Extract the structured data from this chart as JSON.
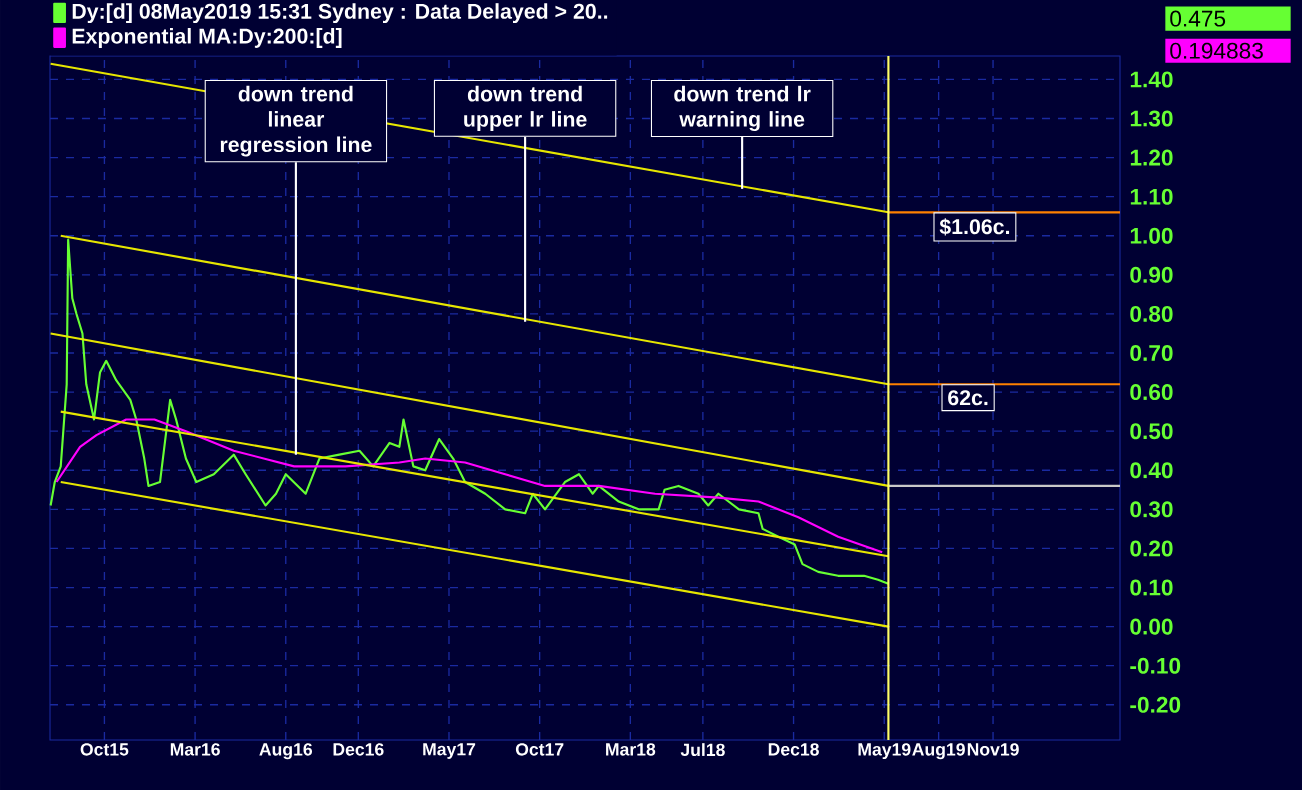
{
  "chart_data": {
    "type": "line",
    "xlim": [
      "2015-07",
      "2020-06"
    ],
    "ylim": [
      -0.29,
      1.46
    ],
    "xticks": [
      {
        "value": "2015-10",
        "label": "Oct15"
      },
      {
        "value": "2016-03",
        "label": "Mar16"
      },
      {
        "value": "2016-08",
        "label": "Aug16"
      },
      {
        "value": "2016-12",
        "label": "Dec16"
      },
      {
        "value": "2017-05",
        "label": "May17"
      },
      {
        "value": "2017-10",
        "label": "Oct17"
      },
      {
        "value": "2018-03",
        "label": "Mar18"
      },
      {
        "value": "2018-07",
        "label": "Jul18"
      },
      {
        "value": "2018-12",
        "label": "Dec18"
      },
      {
        "value": "2019-05",
        "label": "May19"
      },
      {
        "value": "2019-08",
        "label": "Aug19"
      },
      {
        "value": "2019-11",
        "label": "Nov19"
      }
    ],
    "yticks": [
      {
        "value": -0.2,
        "label": "-0.20"
      },
      {
        "value": -0.1,
        "label": "-0.10"
      },
      {
        "value": 0,
        "label": "0.00"
      },
      {
        "value": 0.1,
        "label": "0.10"
      },
      {
        "value": 0.2,
        "label": "0.20"
      },
      {
        "value": 0.3,
        "label": "0.30"
      },
      {
        "value": 0.4,
        "label": "0.40"
      },
      {
        "value": 0.5,
        "label": "0.50"
      },
      {
        "value": 0.6,
        "label": "0.60"
      },
      {
        "value": 0.7,
        "label": "0.70"
      },
      {
        "value": 0.8,
        "label": "0.80"
      },
      {
        "value": 0.9,
        "label": "0.90"
      },
      {
        "value": 1.0,
        "label": "1.00"
      },
      {
        "value": 1.1,
        "label": "1.10"
      },
      {
        "value": 1.2,
        "label": "1.20"
      },
      {
        "value": 1.3,
        "label": "1.30"
      },
      {
        "value": 1.4,
        "label": "1.40"
      }
    ],
    "grid": true,
    "legend": "top left",
    "series": [
      {
        "name": "Dy:[d]  08May2019 15:31 Sydney : Data Delayed > 20..",
        "color": "#66ff33",
        "x": [
          "2015-07-02",
          "2015-07-09",
          "2015-07-19",
          "2015-07-29",
          "2015-08-01",
          "2015-08-08",
          "2015-08-15",
          "2015-08-25",
          "2015-09-01",
          "2015-09-14",
          "2015-09-24",
          "2015-10-04",
          "2015-10-21",
          "2015-11-14",
          "2015-11-24",
          "2015-12-07",
          "2015-12-14",
          "2016-01-03",
          "2016-01-20",
          "2016-01-30",
          "2016-02-16",
          "2016-03-03",
          "2016-04-02",
          "2016-05-05",
          "2016-05-25",
          "2016-06-28",
          "2016-07-15",
          "2016-08-01",
          "2016-09-04",
          "2016-09-27",
          "2016-10-30",
          "2016-12-03",
          "2016-12-26",
          "2017-01-23",
          "2017-02-09",
          "2017-02-16",
          "2017-03-02",
          "2017-03-22",
          "2017-04-15",
          "2017-05-08",
          "2017-05-28",
          "2017-07-01",
          "2017-08-04",
          "2017-09-07",
          "2017-09-20",
          "2017-10-10",
          "2017-11-13",
          "2017-12-06",
          "2017-12-29",
          "2018-01-09",
          "2018-02-12",
          "2018-03-15",
          "2018-04-18",
          "2018-04-28",
          "2018-05-21",
          "2018-06-24",
          "2018-07-10",
          "2018-07-27",
          "2018-08-31",
          "2018-10-03",
          "2018-10-10",
          "2018-11-06",
          "2018-12-03",
          "2018-12-16",
          "2019-01-12",
          "2019-02-15",
          "2019-03-28",
          "2019-04-21",
          "2019-05-08"
        ],
        "values": [
          0.31,
          0.37,
          0.41,
          0.62,
          0.99,
          0.84,
          0.8,
          0.75,
          0.62,
          0.53,
          0.65,
          0.68,
          0.63,
          0.58,
          0.53,
          0.43,
          0.36,
          0.37,
          0.58,
          0.53,
          0.43,
          0.37,
          0.39,
          0.44,
          0.39,
          0.31,
          0.34,
          0.39,
          0.34,
          0.43,
          0.44,
          0.45,
          0.41,
          0.47,
          0.46,
          0.53,
          0.41,
          0.4,
          0.48,
          0.43,
          0.37,
          0.34,
          0.3,
          0.29,
          0.34,
          0.3,
          0.37,
          0.39,
          0.34,
          0.36,
          0.32,
          0.3,
          0.3,
          0.35,
          0.36,
          0.34,
          0.31,
          0.34,
          0.3,
          0.29,
          0.25,
          0.23,
          0.21,
          0.16,
          0.14,
          0.13,
          0.13,
          0.12,
          0.11
        ]
      },
      {
        "name": "Exponential MA:Dy:200:[d]",
        "color": "#ff00ff",
        "x": [
          "2015-07-12",
          "2015-08-21",
          "2015-09-18",
          "2015-11-07",
          "2015-12-24",
          "2016-02-16",
          "2016-05-05",
          "2016-08-15",
          "2016-11-10",
          "2017-02-09",
          "2017-03-22",
          "2017-05-28",
          "2017-08-04",
          "2017-10-10",
          "2018-01-09",
          "2018-04-12",
          "2018-07-27",
          "2018-10-03",
          "2018-12-09",
          "2019-02-15",
          "2019-04-28"
        ],
        "values": [
          0.37,
          0.46,
          0.49,
          0.53,
          0.53,
          0.5,
          0.45,
          0.41,
          0.41,
          0.42,
          0.43,
          0.42,
          0.39,
          0.36,
          0.36,
          0.34,
          0.33,
          0.32,
          0.28,
          0.23,
          0.19
        ]
      },
      {
        "color": "#e6e600",
        "x": [
          "2015-07-02",
          "2019-05-08"
        ],
        "values": [
          1.44,
          1.06
        ]
      },
      {
        "color": "#e6e600",
        "x": [
          "2015-07-19",
          "2019-05-08"
        ],
        "values": [
          1.0,
          0.62
        ]
      },
      {
        "color": "#e6e600",
        "x": [
          "2015-07-02",
          "2019-05-08"
        ],
        "values": [
          0.75,
          0.36
        ]
      },
      {
        "color": "#e6e600",
        "x": [
          "2015-07-19",
          "2019-05-08"
        ],
        "values": [
          0.55,
          0.18
        ]
      },
      {
        "color": "#e6e600",
        "x": [
          "2015-07-19",
          "2019-05-08"
        ],
        "values": [
          0.37,
          0.0
        ]
      },
      {
        "color": "#ff8000",
        "x": [
          "2019-05-08",
          "2020-06"
        ],
        "values": [
          1.06,
          1.06
        ]
      },
      {
        "color": "#ff8000",
        "x": [
          "2019-05-08",
          "2020-06"
        ],
        "values": [
          0.62,
          0.62
        ]
      },
      {
        "color": "#c8c8c8",
        "x": [
          "2019-05-08",
          "2020-06"
        ],
        "values": [
          0.36,
          0.36
        ]
      }
    ],
    "ref_lines": [
      {
        "axis": "x",
        "value": "2019-05-08",
        "color": "#ffff66"
      }
    ],
    "annotations": [
      {
        "text": "down trend linear regression line",
        "x": "2016-08-18",
        "y": 0.44
      },
      {
        "text": "down trend upper lr line",
        "x": "2017-09-07",
        "y": 0.78
      },
      {
        "text": "down trend lr warning line",
        "x": "2018-09-06",
        "y": 1.12
      },
      {
        "text": "$1.06c.",
        "x": "2019-10-01",
        "y": 1.06
      },
      {
        "text": "62c.",
        "x": "2019-09-20",
        "y": 0.62
      },
      "0.475",
      "0.194883"
    ]
  }
}
